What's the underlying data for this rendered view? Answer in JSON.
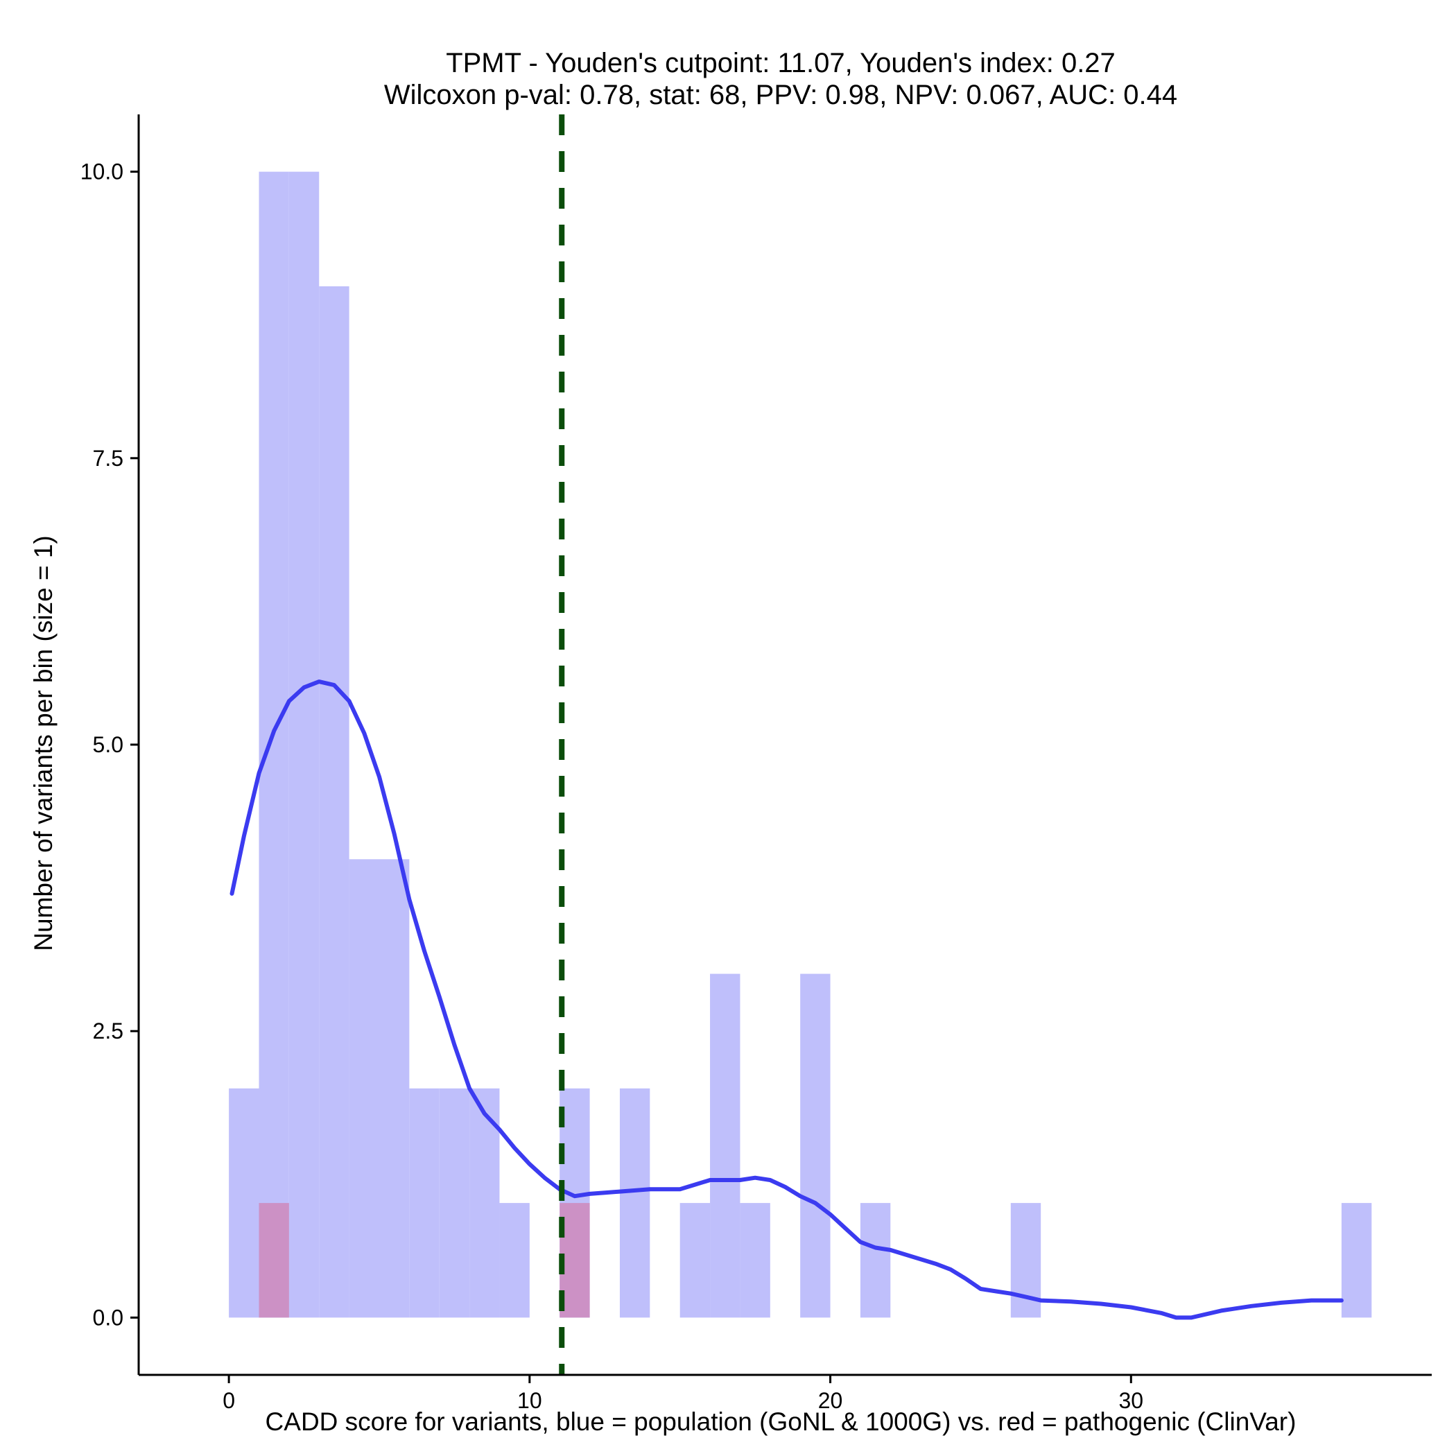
{
  "chart_data": {
    "type": "bar",
    "subtype": "histogram with density curve",
    "title_line1": "TPMT - Youden's cutpoint: 11.07, Youden's index: 0.27",
    "title_line2": "Wilcoxon p-val: 0.78, stat: 68, PPV: 0.98, NPV: 0.067, AUC: 0.44",
    "xlabel": "CADD score for variants, blue = population (GoNL & 1000G) vs. red = pathogenic (ClinVar)",
    "ylabel": "Number of variants per bin (size = 1)",
    "xlim": [
      -3,
      40
    ],
    "ylim": [
      -0.5,
      10.5
    ],
    "x_ticks": [
      0,
      10,
      20,
      30
    ],
    "x_tick_labels": [
      "0",
      "10",
      "20",
      "30"
    ],
    "y_ticks": [
      0,
      2.5,
      5,
      7.5,
      10
    ],
    "y_tick_labels": [
      "0.0",
      "2.5",
      "5.0",
      "7.5",
      "10.0"
    ],
    "bin_width": 1,
    "colors": {
      "population": "#bfbffb",
      "pathogenic": "#cc91c5",
      "density": "#3b3bf0",
      "cutpoint": "#0b4d0b"
    },
    "cutpoint": 11.07,
    "series": [
      {
        "name": "population (GoNL & 1000G)",
        "bins": [
          {
            "start": 0,
            "count": 2
          },
          {
            "start": 1,
            "count": 10
          },
          {
            "start": 2,
            "count": 10
          },
          {
            "start": 3,
            "count": 9
          },
          {
            "start": 4,
            "count": 4
          },
          {
            "start": 5,
            "count": 4
          },
          {
            "start": 6,
            "count": 2
          },
          {
            "start": 7,
            "count": 2
          },
          {
            "start": 8,
            "count": 2
          },
          {
            "start": 9,
            "count": 1
          },
          {
            "start": 11,
            "count": 2
          },
          {
            "start": 13,
            "count": 2
          },
          {
            "start": 15,
            "count": 1
          },
          {
            "start": 16,
            "count": 3
          },
          {
            "start": 17,
            "count": 1
          },
          {
            "start": 19,
            "count": 3
          },
          {
            "start": 21,
            "count": 1
          },
          {
            "start": 26,
            "count": 1
          },
          {
            "start": 37,
            "count": 1
          }
        ]
      },
      {
        "name": "pathogenic (ClinVar)",
        "bins": [
          {
            "start": 1,
            "count": 1
          },
          {
            "start": 11,
            "count": 1
          }
        ]
      }
    ],
    "density_curve": {
      "name": "population density",
      "points": [
        [
          0.1,
          3.7
        ],
        [
          0.5,
          4.2
        ],
        [
          1.0,
          4.75
        ],
        [
          1.5,
          5.12
        ],
        [
          2.0,
          5.38
        ],
        [
          2.5,
          5.5
        ],
        [
          3.0,
          5.55
        ],
        [
          3.5,
          5.52
        ],
        [
          4.0,
          5.38
        ],
        [
          4.5,
          5.1
        ],
        [
          5.0,
          4.72
        ],
        [
          5.5,
          4.22
        ],
        [
          6.0,
          3.65
        ],
        [
          6.5,
          3.2
        ],
        [
          7.0,
          2.8
        ],
        [
          7.5,
          2.38
        ],
        [
          8.0,
          2.0
        ],
        [
          8.5,
          1.78
        ],
        [
          9.0,
          1.64
        ],
        [
          9.5,
          1.48
        ],
        [
          10.0,
          1.34
        ],
        [
          10.5,
          1.22
        ],
        [
          11.0,
          1.12
        ],
        [
          11.5,
          1.06
        ],
        [
          12.0,
          1.08
        ],
        [
          12.5,
          1.09
        ],
        [
          13.0,
          1.1
        ],
        [
          14.0,
          1.12
        ],
        [
          14.5,
          1.12
        ],
        [
          15.0,
          1.12
        ],
        [
          15.5,
          1.16
        ],
        [
          16.0,
          1.2
        ],
        [
          16.5,
          1.2
        ],
        [
          17.0,
          1.2
        ],
        [
          17.5,
          1.22
        ],
        [
          18.0,
          1.2
        ],
        [
          18.5,
          1.14
        ],
        [
          19.0,
          1.06
        ],
        [
          19.5,
          1.0
        ],
        [
          20.0,
          0.9
        ],
        [
          20.5,
          0.78
        ],
        [
          21.0,
          0.66
        ],
        [
          21.5,
          0.61
        ],
        [
          22.0,
          0.59
        ],
        [
          22.5,
          0.55
        ],
        [
          23.0,
          0.51
        ],
        [
          23.5,
          0.47
        ],
        [
          24.0,
          0.42
        ],
        [
          24.5,
          0.34
        ],
        [
          25.0,
          0.25
        ],
        [
          25.5,
          0.23
        ],
        [
          26.0,
          0.21
        ],
        [
          26.5,
          0.18
        ],
        [
          27.0,
          0.15
        ],
        [
          28.0,
          0.14
        ],
        [
          29.0,
          0.12
        ],
        [
          30.0,
          0.09
        ],
        [
          31.0,
          0.04
        ],
        [
          31.5,
          0.0
        ],
        [
          32.0,
          0.0
        ],
        [
          33.0,
          0.06
        ],
        [
          34.0,
          0.1
        ],
        [
          35.0,
          0.13
        ],
        [
          36.0,
          0.15
        ],
        [
          37.0,
          0.15
        ]
      ]
    }
  }
}
